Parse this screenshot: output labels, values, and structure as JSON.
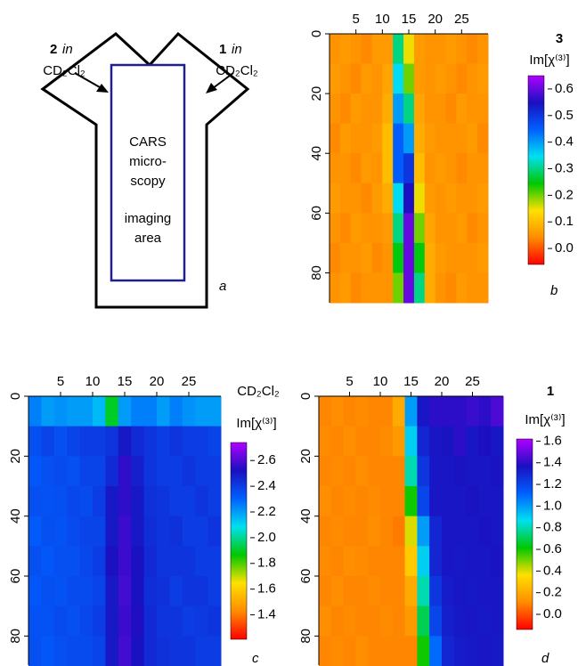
{
  "diagram": {
    "inlet_left": {
      "number": "2",
      "word": "in",
      "solvent": "CD₂Cl₂"
    },
    "inlet_right": {
      "number": "1",
      "word": "in",
      "solvent": "CD₂Cl₂"
    },
    "area_lines": [
      "CARS",
      "micro-",
      "scopy",
      "imaging",
      "area"
    ],
    "panel_label": "a"
  },
  "chart_data": [
    {
      "type": "heatmap",
      "title": "3",
      "panel_label": "b",
      "colorbar_label": "Im[χ⁽³⁾]",
      "x": [
        1,
        3,
        5,
        7,
        9,
        11,
        13,
        15,
        17,
        19,
        21,
        23,
        25,
        27,
        29
      ],
      "y": [
        5,
        15,
        25,
        35,
        45,
        55,
        65,
        75,
        85
      ],
      "xlim": [
        0,
        30
      ],
      "ylim": [
        90,
        0
      ],
      "xticks": [
        5,
        10,
        15,
        20,
        25
      ],
      "yticks": [
        0,
        20,
        40,
        60,
        80
      ],
      "zlim": [
        -0.06,
        0.65
      ],
      "zticks": [
        {
          "value": 0,
          "label": "0.0"
        },
        0.1,
        0.2,
        0.3,
        0.4,
        0.5,
        0.6
      ],
      "colorscale": [
        "#ff0000",
        "#ff8c00",
        "#ffe000",
        "#00c800",
        "#00e0f0",
        "#0060ff",
        "#1a10c0",
        "#b000ff"
      ],
      "values": [
        [
          0.05,
          0.06,
          0.05,
          0.04,
          0.06,
          0.06,
          0.3,
          0.15,
          0.06,
          0.05,
          0.05,
          0.06,
          0.05,
          0.04,
          0.05
        ],
        [
          0.06,
          0.05,
          0.04,
          0.06,
          0.05,
          0.07,
          0.35,
          0.2,
          0.06,
          0.05,
          0.06,
          0.05,
          0.04,
          0.05,
          0.06
        ],
        [
          0.05,
          0.04,
          0.06,
          0.05,
          0.05,
          0.08,
          0.4,
          0.3,
          0.07,
          0.05,
          0.05,
          0.04,
          0.06,
          0.05,
          0.05
        ],
        [
          0.04,
          0.06,
          0.05,
          0.05,
          0.06,
          0.1,
          0.45,
          0.4,
          0.08,
          0.06,
          0.05,
          0.05,
          0.05,
          0.06,
          0.04
        ],
        [
          0.05,
          0.05,
          0.04,
          0.06,
          0.05,
          0.1,
          0.45,
          0.5,
          0.1,
          0.05,
          0.06,
          0.05,
          0.04,
          0.05,
          0.05
        ],
        [
          0.06,
          0.05,
          0.05,
          0.04,
          0.06,
          0.08,
          0.35,
          0.55,
          0.15,
          0.06,
          0.05,
          0.06,
          0.05,
          0.05,
          0.06
        ],
        [
          0.05,
          0.04,
          0.06,
          0.05,
          0.05,
          0.06,
          0.3,
          0.6,
          0.2,
          0.07,
          0.05,
          0.05,
          0.06,
          0.04,
          0.05
        ],
        [
          0.04,
          0.05,
          0.05,
          0.06,
          0.04,
          0.05,
          0.25,
          0.6,
          0.25,
          0.08,
          0.06,
          0.05,
          0.05,
          0.05,
          0.06
        ],
        [
          0.05,
          0.06,
          0.04,
          0.05,
          0.05,
          0.05,
          0.2,
          0.6,
          0.3,
          0.08,
          0.05,
          0.04,
          0.06,
          0.05,
          0.05
        ]
      ]
    },
    {
      "type": "heatmap",
      "title": "CD₂Cl₂",
      "panel_label": "c",
      "colorbar_label": "Im[χ⁽³⁾]",
      "x": [
        1,
        3,
        5,
        7,
        9,
        11,
        13,
        15,
        17,
        19,
        21,
        23,
        25,
        27,
        29
      ],
      "y": [
        5,
        15,
        25,
        35,
        45,
        55,
        65,
        75,
        85
      ],
      "xlim": [
        0,
        30
      ],
      "ylim": [
        90,
        0
      ],
      "xticks": [
        5,
        10,
        15,
        20,
        25
      ],
      "yticks": [
        0,
        20,
        40,
        60,
        80
      ],
      "zlim": [
        1.21,
        2.74
      ],
      "zticks": [
        1.4,
        1.6,
        1.8,
        {
          "value": 2,
          "label": "2.0"
        },
        2.2,
        2.4,
        2.6
      ],
      "colorscale": [
        "#ff0000",
        "#ff8c00",
        "#ffe000",
        "#00c800",
        "#00e0f0",
        "#0060ff",
        "#1a10c0",
        "#b000ff"
      ],
      "values": [
        [
          2.25,
          2.2,
          2.22,
          2.2,
          2.2,
          2.15,
          1.9,
          2.2,
          2.25,
          2.25,
          2.2,
          2.25,
          2.22,
          2.2,
          2.2
        ],
        [
          2.35,
          2.38,
          2.35,
          2.38,
          2.4,
          2.4,
          2.42,
          2.5,
          2.45,
          2.42,
          2.4,
          2.42,
          2.4,
          2.4,
          2.38
        ],
        [
          2.33,
          2.35,
          2.36,
          2.35,
          2.38,
          2.38,
          2.45,
          2.55,
          2.48,
          2.42,
          2.4,
          2.4,
          2.42,
          2.4,
          2.4
        ],
        [
          2.35,
          2.34,
          2.35,
          2.37,
          2.36,
          2.4,
          2.5,
          2.55,
          2.5,
          2.43,
          2.42,
          2.4,
          2.4,
          2.42,
          2.4
        ],
        [
          2.32,
          2.35,
          2.34,
          2.36,
          2.38,
          2.38,
          2.5,
          2.57,
          2.5,
          2.44,
          2.42,
          2.43,
          2.4,
          2.4,
          2.42
        ],
        [
          2.35,
          2.33,
          2.35,
          2.35,
          2.37,
          2.4,
          2.52,
          2.57,
          2.52,
          2.45,
          2.42,
          2.42,
          2.42,
          2.4,
          2.4
        ],
        [
          2.33,
          2.35,
          2.34,
          2.36,
          2.36,
          2.38,
          2.5,
          2.58,
          2.52,
          2.44,
          2.43,
          2.4,
          2.42,
          2.42,
          2.4
        ],
        [
          2.34,
          2.34,
          2.36,
          2.35,
          2.37,
          2.4,
          2.5,
          2.57,
          2.53,
          2.45,
          2.42,
          2.42,
          2.4,
          2.41,
          2.42
        ],
        [
          2.35,
          2.33,
          2.35,
          2.36,
          2.36,
          2.38,
          2.5,
          2.58,
          2.52,
          2.45,
          2.43,
          2.42,
          2.42,
          2.4,
          2.4
        ]
      ]
    },
    {
      "type": "heatmap",
      "title": "1",
      "panel_label": "d",
      "colorbar_label": "Im[χ⁽³⁾]",
      "x": [
        1,
        3,
        5,
        7,
        9,
        11,
        13,
        15,
        17,
        19,
        21,
        23,
        25,
        27,
        29
      ],
      "y": [
        5,
        15,
        25,
        35,
        45,
        55,
        65,
        75,
        85
      ],
      "xlim": [
        0,
        30
      ],
      "ylim": [
        90,
        0
      ],
      "xticks": [
        5,
        10,
        15,
        20,
        25
      ],
      "yticks": [
        0,
        20,
        40,
        60,
        80
      ],
      "zlim": [
        -0.14,
        1.62
      ],
      "zticks": [
        {
          "value": 0,
          "label": "0.0"
        },
        0.2,
        0.4,
        0.6,
        0.8,
        {
          "value": 1,
          "label": "1.0"
        },
        1.2,
        1.4,
        1.6
      ],
      "colorscale": [
        "#ff0000",
        "#ff8c00",
        "#ffe000",
        "#00c800",
        "#00e0f0",
        "#0060ff",
        "#1a10c0",
        "#b000ff"
      ],
      "values": [
        [
          0.1,
          0.12,
          0.1,
          0.11,
          0.1,
          0.1,
          0.2,
          1.0,
          1.35,
          1.4,
          1.4,
          1.4,
          1.42,
          1.4,
          1.45
        ],
        [
          0.11,
          0.1,
          0.12,
          0.1,
          0.1,
          0.11,
          0.15,
          0.9,
          1.3,
          1.35,
          1.36,
          1.4,
          1.35,
          1.37,
          1.35
        ],
        [
          0.1,
          0.11,
          0.1,
          0.12,
          0.1,
          0.1,
          0.1,
          0.8,
          1.25,
          1.35,
          1.35,
          1.36,
          1.35,
          1.35,
          1.36
        ],
        [
          0.12,
          0.1,
          0.11,
          0.1,
          0.11,
          0.1,
          0.1,
          0.6,
          1.2,
          1.35,
          1.35,
          1.35,
          1.36,
          1.35,
          1.35
        ],
        [
          0.1,
          0.11,
          0.1,
          0.1,
          0.12,
          0.1,
          0.08,
          0.4,
          1.0,
          1.3,
          1.35,
          1.35,
          1.35,
          1.36,
          1.35
        ],
        [
          0.11,
          0.1,
          0.12,
          0.11,
          0.1,
          0.1,
          0.1,
          0.3,
          0.9,
          1.3,
          1.35,
          1.34,
          1.35,
          1.35,
          1.36
        ],
        [
          0.1,
          0.12,
          0.1,
          0.1,
          0.11,
          0.1,
          0.1,
          0.2,
          0.8,
          1.25,
          1.33,
          1.35,
          1.34,
          1.35,
          1.35
        ],
        [
          0.12,
          0.1,
          0.11,
          0.1,
          0.1,
          0.11,
          0.1,
          0.15,
          0.7,
          1.2,
          1.32,
          1.34,
          1.35,
          1.34,
          1.35
        ],
        [
          0.1,
          0.11,
          0.1,
          0.12,
          0.1,
          0.1,
          0.1,
          0.1,
          0.6,
          1.1,
          1.3,
          1.33,
          1.34,
          1.35,
          1.34
        ]
      ]
    }
  ]
}
